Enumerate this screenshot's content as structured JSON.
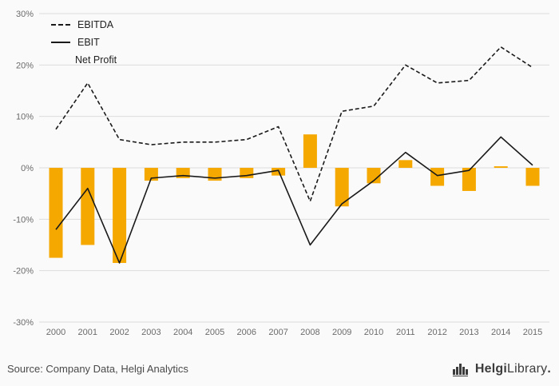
{
  "chart_data": {
    "type": "combo",
    "categories": [
      "2000",
      "2001",
      "2002",
      "2003",
      "2004",
      "2005",
      "2006",
      "2007",
      "2008",
      "2009",
      "2010",
      "2011",
      "2012",
      "2013",
      "2014",
      "2015"
    ],
    "series": [
      {
        "name": "EBITDA",
        "type": "line",
        "style": "dashed",
        "color": "#1a1a1a",
        "values": [
          7.5,
          16.5,
          5.5,
          4.5,
          5,
          5,
          5.5,
          8,
          -6.5,
          11,
          12,
          20,
          16.5,
          17,
          23.5,
          19.5
        ]
      },
      {
        "name": "EBIT",
        "type": "line",
        "style": "solid",
        "color": "#1a1a1a",
        "values": [
          -12,
          -4,
          -18.5,
          -2,
          -1.5,
          -2,
          -1.5,
          -0.5,
          -15,
          -7,
          -2.5,
          3,
          -1.5,
          -0.5,
          6,
          0.5
        ]
      },
      {
        "name": "Net Profit",
        "type": "bar",
        "color": "#F5A800",
        "values": [
          -17.5,
          -15,
          -18.5,
          -2.5,
          -2,
          -2.5,
          -2,
          -1.5,
          6.5,
          -7.5,
          -3,
          1.5,
          -3.5,
          -4.5,
          0.3,
          -3.5
        ]
      }
    ],
    "title": "",
    "xlabel": "",
    "ylabel": "",
    "ylim": [
      -30,
      30
    ],
    "ytick_step": 10,
    "ytick_suffix": "%",
    "grid": true,
    "legend_position": "top-left"
  },
  "colors": {
    "accent_orange": "#F5A800",
    "line_black": "#1a1a1a",
    "grid_gray": "#dcdcdc",
    "background": "#fafafa",
    "axis_text": "#6b6b6b"
  },
  "footer": {
    "source": "Source: Company Data, Helgi Analytics",
    "logo_bold": "Helgi",
    "logo_regular": "Library",
    "logo_dot": "."
  }
}
